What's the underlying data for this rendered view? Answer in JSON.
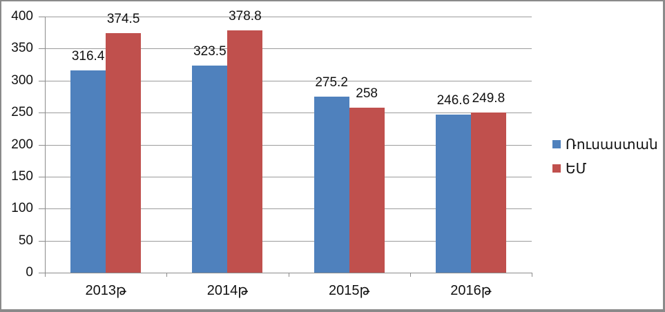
{
  "chart_data": {
    "type": "bar",
    "title": "",
    "categories": [
      "2013թ",
      "2014թ",
      "2015թ",
      "2016թ"
    ],
    "series": [
      {
        "name": "Ռուսաստան",
        "color": "#4f81bd",
        "values": [
          316.4,
          323.5,
          275.2,
          246.6
        ]
      },
      {
        "name": "ԵՄ",
        "color": "#c0504d",
        "values": [
          374.5,
          378.8,
          258,
          249.8
        ]
      }
    ],
    "ylim": [
      0,
      400
    ],
    "ytick_step": 50,
    "yticks": [
      "0",
      "50",
      "100",
      "150",
      "200",
      "250",
      "300",
      "350",
      "400"
    ],
    "grid": true,
    "data_labels": true,
    "legend_position": "right",
    "xlabel": "",
    "ylabel": ""
  },
  "colors": {
    "series_blue": "#4f81bd",
    "series_red": "#c0504d",
    "gridline": "#9b9b9b",
    "axis": "#8b8b8b",
    "frame_border": "#8a8a8a",
    "background": "#ffffff",
    "text": "#111111"
  }
}
